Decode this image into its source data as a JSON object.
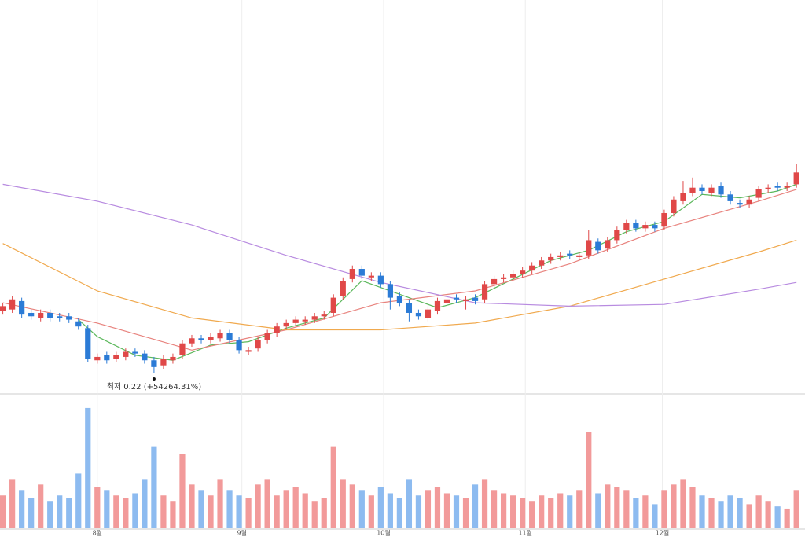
{
  "chart_data": {
    "type": "candlestick",
    "annotation": "최저 0.22 (+54264.31%)",
    "up_color": "#e04848",
    "down_color": "#2b7bd6",
    "volume_up_color": "#f29a9a",
    "volume_down_color": "#8dbbf0",
    "xlim": [
      -0.3,
      84.9
    ],
    "ylim": [
      -11.4,
      220.9
    ],
    "vlim": [
      0,
      120
    ],
    "xticks": [
      {
        "value": 10,
        "label": "8월"
      },
      {
        "value": 25.3,
        "label": "9월"
      },
      {
        "value": 40.3,
        "label": "10월"
      },
      {
        "value": 55.3,
        "label": "11월"
      },
      {
        "value": 69.8,
        "label": "12월"
      }
    ],
    "grid": true,
    "open": [
      37,
      38,
      43,
      36,
      33,
      36,
      34,
      34,
      31,
      27,
      8,
      11,
      9,
      10,
      13,
      12,
      8,
      5,
      8,
      11,
      18,
      21,
      20,
      21,
      24,
      20,
      13,
      15,
      20,
      24,
      28,
      30,
      31,
      32,
      34,
      36,
      46,
      56,
      62,
      57,
      58,
      53,
      46,
      42,
      36,
      33,
      37,
      42,
      45,
      43,
      45,
      44,
      53,
      56,
      57,
      59,
      61,
      64,
      67,
      69,
      71,
      69,
      70,
      78,
      74,
      79,
      85,
      89,
      86,
      88,
      87,
      95,
      102,
      107,
      110,
      107,
      111,
      106,
      101,
      100,
      104,
      109,
      111,
      110,
      112
    ],
    "high": [
      42,
      46,
      45,
      38,
      38,
      38,
      36,
      36,
      33,
      29,
      12,
      13,
      13,
      15,
      15,
      14,
      10,
      11,
      12,
      20,
      23,
      23,
      24,
      26,
      26,
      22,
      16,
      22,
      26,
      30,
      32,
      34,
      34,
      36,
      37,
      47,
      57,
      64,
      64,
      60,
      60,
      55,
      48,
      44,
      38,
      40,
      45,
      46,
      47,
      46,
      47,
      55,
      58,
      59,
      61,
      63,
      66,
      69,
      71,
      72,
      73,
      72,
      85,
      80,
      81,
      87,
      91,
      91,
      90,
      90,
      97,
      105,
      114,
      116,
      112,
      112,
      113,
      108,
      103,
      105,
      111,
      112,
      113,
      113,
      124
    ],
    "low": [
      35,
      36,
      33,
      32,
      31,
      31,
      31,
      30,
      26,
      7,
      6,
      6,
      7,
      8,
      10,
      6,
      0.22,
      3,
      6,
      9,
      16,
      18,
      18,
      19,
      18,
      12,
      11,
      13,
      18,
      22,
      26,
      28,
      29,
      30,
      32,
      34,
      44,
      54,
      56,
      55,
      51,
      38,
      40,
      31,
      32,
      31,
      35,
      40,
      42,
      38,
      41,
      42,
      51,
      54,
      55,
      57,
      59,
      62,
      65,
      67,
      68,
      67,
      68,
      71,
      72,
      77,
      83,
      84,
      84,
      84,
      85,
      93,
      100,
      105,
      106,
      105,
      104,
      100,
      98,
      98,
      102,
      107,
      108,
      108,
      110
    ],
    "close": [
      40,
      44,
      35,
      34,
      36,
      33,
      33,
      32,
      28,
      9,
      10,
      8,
      11,
      13,
      12,
      8,
      4,
      9,
      10,
      18,
      21,
      20,
      22,
      24,
      20,
      14,
      14,
      20,
      24,
      28,
      30,
      32,
      32,
      34,
      35,
      45,
      55,
      62,
      58,
      58,
      53,
      45,
      42,
      36,
      34,
      38,
      43,
      44,
      44,
      44,
      43,
      53,
      56,
      57,
      59,
      61,
      64,
      67,
      69,
      70,
      70,
      70,
      79,
      73,
      79,
      85,
      89,
      86,
      88,
      86,
      95,
      103,
      107,
      110,
      108,
      110,
      106,
      102,
      100,
      103,
      109,
      110,
      110,
      111,
      119
    ],
    "volume": [
      30,
      45,
      35,
      28,
      40,
      25,
      30,
      28,
      50,
      110,
      38,
      35,
      30,
      28,
      32,
      45,
      75,
      30,
      25,
      68,
      40,
      35,
      30,
      45,
      35,
      30,
      28,
      40,
      45,
      30,
      35,
      38,
      32,
      25,
      28,
      75,
      45,
      40,
      35,
      30,
      38,
      32,
      28,
      45,
      30,
      35,
      38,
      32,
      30,
      28,
      40,
      45,
      35,
      32,
      30,
      28,
      25,
      30,
      28,
      32,
      30,
      35,
      88,
      32,
      40,
      38,
      35,
      28,
      30,
      22,
      35,
      40,
      45,
      38,
      30,
      28,
      25,
      30,
      28,
      22,
      30,
      25,
      20,
      18,
      35
    ],
    "lines": [
      {
        "color": "#5cb85c",
        "x": [
          8,
          10,
          14,
          18,
          22,
          26,
          30,
          34,
          38,
          42,
          46,
          50,
          54,
          58,
          62,
          66,
          70,
          74,
          78,
          82,
          84
        ],
        "values": [
          32,
          22,
          11,
          8,
          17,
          19,
          27,
          33,
          55,
          47,
          39,
          45,
          56,
          67,
          73,
          84,
          90,
          106,
          104,
          108,
          112
        ]
      },
      {
        "color": "#e8837e",
        "x": [
          0,
          10,
          20,
          30,
          40,
          50,
          60,
          70,
          80,
          84
        ],
        "values": [
          42,
          30,
          14,
          26,
          42,
          49,
          65,
          86,
          102,
          109
        ]
      },
      {
        "color": "#f0a94e",
        "x": [
          0,
          10,
          20,
          30,
          40,
          50,
          60,
          70,
          80,
          84
        ],
        "values": [
          77,
          49,
          33,
          26,
          26,
          30,
          40,
          56,
          72,
          79
        ]
      },
      {
        "color": "#b88be0",
        "x": [
          0,
          10,
          20,
          30,
          40,
          50,
          60,
          70,
          80,
          84
        ],
        "values": [
          112,
          102,
          88,
          70,
          54,
          42,
          40,
          41,
          50,
          54
        ]
      }
    ]
  }
}
